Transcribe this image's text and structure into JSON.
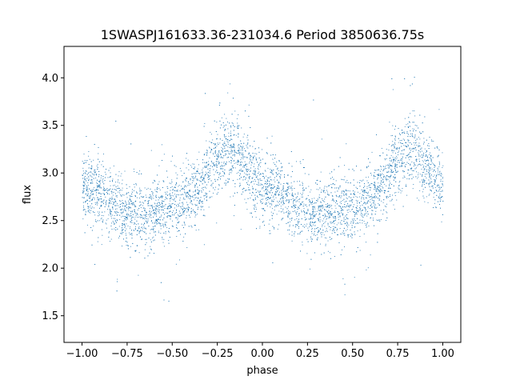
{
  "chart_data": {
    "type": "scatter",
    "title": "1SWASPJ161633.36-231034.6 Period 3850636.75s",
    "xlabel": "phase",
    "ylabel": "flux",
    "xlim": [
      -1.1,
      1.1
    ],
    "ylim": [
      1.22,
      4.33
    ],
    "xticks": [
      -1.0,
      -0.75,
      -0.5,
      -0.25,
      0.0,
      0.25,
      0.5,
      0.75,
      1.0
    ],
    "xtick_labels": [
      "−1.00",
      "−0.75",
      "−0.50",
      "−0.25",
      "0.00",
      "0.25",
      "0.50",
      "0.75",
      "1.00"
    ],
    "yticks": [
      1.5,
      2.0,
      2.5,
      3.0,
      3.5,
      4.0
    ],
    "ytick_labels": [
      "1.5",
      "2.0",
      "2.5",
      "3.0",
      "3.5",
      "4.0"
    ],
    "grid": false,
    "marker_color": "#1f77b4",
    "phase_range": [
      -1.0,
      1.0
    ],
    "profile": {
      "phase": [
        0.0,
        0.05,
        0.1,
        0.15,
        0.2,
        0.25,
        0.3,
        0.35,
        0.4,
        0.45,
        0.5,
        0.55,
        0.6,
        0.65,
        0.7,
        0.75,
        0.8,
        0.85,
        0.9,
        0.95,
        1.0
      ],
      "flux": [
        2.85,
        2.82,
        2.78,
        2.7,
        2.62,
        2.6,
        2.58,
        2.58,
        2.6,
        2.62,
        2.64,
        2.68,
        2.75,
        2.85,
        3.0,
        3.15,
        3.25,
        3.2,
        3.1,
        2.95,
        2.85
      ]
    },
    "scatter_spread": 0.18,
    "n_points": 6000
  }
}
